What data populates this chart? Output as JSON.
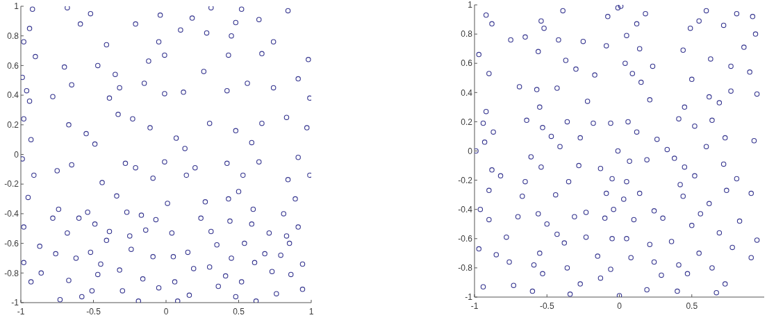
{
  "chart_data": [
    {
      "type": "scatter",
      "color": "#35358f",
      "marker": "circle",
      "xlim": [
        -1,
        1
      ],
      "ylim": [
        -1,
        1
      ],
      "xticks": [
        -1,
        -0.5,
        0,
        0.5,
        1
      ],
      "yticks": [
        -1,
        -0.8,
        -0.6,
        -0.4,
        -0.2,
        0,
        0.2,
        0.4,
        0.6,
        0.8,
        1
      ],
      "x": [
        -0.92,
        -0.68,
        -0.52,
        -0.21,
        -0.04,
        0.1,
        0.18,
        0.31,
        0.48,
        0.52,
        0.64,
        0.84,
        -0.94,
        -0.98,
        -0.59,
        -0.41,
        -0.05,
        0.28,
        0.45,
        0.74,
        -0.9,
        -0.99,
        -0.7,
        -0.47,
        -0.35,
        -0.12,
        -0.01,
        0.26,
        0.43,
        0.66,
        0.98,
        0.91,
        -0.96,
        -0.78,
        -0.65,
        -0.39,
        -0.32,
        -0.15,
        -0.01,
        0.12,
        0.42,
        0.56,
        0.74,
        0.99,
        -0.94,
        -0.98,
        -0.93,
        -0.67,
        -0.55,
        -0.49,
        -0.33,
        -0.23,
        -0.11,
        0.07,
        0.13,
        0.3,
        0.48,
        0.59,
        0.66,
        0.83,
        0.97,
        -0.99,
        -0.91,
        -0.75,
        -0.65,
        -0.44,
        -0.28,
        -0.21,
        -0.09,
        -0.01,
        0.14,
        0.2,
        0.42,
        0.53,
        0.64,
        0.84,
        0.91,
        0.99,
        -0.95,
        -0.74,
        -0.54,
        -0.34,
        -0.27,
        -0.17,
        0.01,
        0.27,
        0.43,
        0.5,
        0.6,
        0.81,
        0.89,
        -0.98,
        -0.87,
        -0.78,
        -0.68,
        -0.6,
        -0.49,
        -0.39,
        -0.25,
        -0.41,
        -0.14,
        -0.07,
        0.04,
        0.24,
        0.31,
        0.44,
        0.59,
        0.54,
        0.71,
        0.83,
        0.91,
        -0.98,
        -0.76,
        -0.62,
        -0.52,
        -0.45,
        -0.32,
        -0.24,
        -0.09,
        0.05,
        0.15,
        0.19,
        0.3,
        0.35,
        0.45,
        0.61,
        0.68,
        0.79,
        0.85,
        0.94,
        -0.93,
        -0.86,
        -0.73,
        -0.67,
        -0.58,
        -0.51,
        -0.47,
        -0.3,
        -0.19,
        -0.16,
        -0.05,
        0.06,
        0.08,
        0.16,
        0.36,
        0.41,
        0.48,
        0.52,
        0.62,
        0.73,
        0.76,
        0.86,
        0.94
      ],
      "values": [
        0.98,
        0.99,
        0.95,
        0.88,
        0.94,
        0.84,
        0.92,
        0.99,
        0.89,
        0.98,
        0.91,
        0.97,
        0.85,
        0.76,
        0.88,
        0.74,
        0.76,
        0.82,
        0.8,
        0.76,
        0.66,
        0.52,
        0.59,
        0.6,
        0.54,
        0.63,
        0.67,
        0.56,
        0.67,
        0.68,
        0.64,
        0.51,
        0.43,
        0.39,
        0.47,
        0.38,
        0.45,
        0.48,
        0.41,
        0.42,
        0.43,
        0.48,
        0.45,
        0.38,
        0.36,
        0.24,
        0.1,
        0.2,
        0.14,
        0.07,
        0.27,
        0.24,
        0.18,
        0.11,
        0.04,
        0.21,
        0.16,
        0.08,
        0.21,
        0.25,
        0.18,
        -0.03,
        -0.14,
        -0.11,
        -0.07,
        -0.19,
        -0.06,
        -0.09,
        -0.16,
        -0.05,
        -0.14,
        -0.09,
        -0.06,
        -0.14,
        -0.05,
        -0.17,
        -0.02,
        -0.14,
        -0.29,
        -0.37,
        -0.39,
        -0.28,
        -0.39,
        -0.41,
        -0.33,
        -0.32,
        -0.3,
        -0.25,
        -0.37,
        -0.4,
        -0.3,
        -0.49,
        -0.62,
        -0.43,
        -0.53,
        -0.43,
        -0.47,
        -0.52,
        -0.55,
        -0.58,
        -0.51,
        -0.44,
        -0.53,
        -0.43,
        -0.52,
        -0.45,
        -0.47,
        -0.6,
        -0.53,
        -0.55,
        -0.49,
        -0.73,
        -0.67,
        -0.7,
        -0.66,
        -0.74,
        -0.78,
        -0.64,
        -0.69,
        -0.69,
        -0.66,
        -0.77,
        -0.76,
        -0.61,
        -0.7,
        -0.73,
        -0.67,
        -0.68,
        -0.6,
        -0.74,
        -0.86,
        -0.8,
        -0.98,
        -0.85,
        -0.96,
        -0.92,
        -0.81,
        -0.92,
        -0.99,
        -0.84,
        -0.9,
        -0.86,
        -0.99,
        -0.95,
        -0.89,
        -0.82,
        -0.96,
        -0.86,
        -0.99,
        -0.79,
        -0.94,
        -0.81,
        -0.91
      ]
    },
    {
      "type": "scatter",
      "color": "#35358f",
      "marker": "circle",
      "xlim": [
        -1,
        1
      ],
      "ylim": [
        -1,
        1
      ],
      "xticks": [
        -1,
        -0.5,
        0,
        0.5
      ],
      "yticks": [
        -1,
        -0.8,
        -0.6,
        -0.4,
        -0.2,
        0,
        0.2,
        0.4,
        0.6,
        0.8,
        1
      ],
      "x": [
        -0.92,
        -0.54,
        -0.39,
        -0.08,
        -0.01,
        0.01,
        0.18,
        0.55,
        0.6,
        0.81,
        0.92,
        -0.88,
        -0.65,
        -0.52,
        -0.42,
        0.05,
        0.12,
        0.49,
        0.72,
        0.94,
        -0.97,
        -0.75,
        -0.56,
        -0.37,
        -0.25,
        -0.09,
        0.04,
        0.14,
        0.23,
        0.44,
        0.63,
        0.77,
        0.86,
        -0.9,
        -0.69,
        -0.57,
        -0.43,
        -0.3,
        -0.17,
        0.09,
        0.15,
        0.5,
        0.62,
        0.77,
        0.9,
        0.95,
        -0.92,
        -0.55,
        -0.22,
        0.21,
        0.45,
        0.69,
        -0.94,
        -0.87,
        -0.64,
        -0.53,
        -0.47,
        -0.36,
        -0.27,
        -0.18,
        -0.06,
        -0.01,
        0.06,
        0.12,
        0.41,
        0.26,
        0.52,
        0.64,
        0.73,
        0.93,
        -0.93,
        -0.99,
        -0.61,
        -0.41,
        0.33,
        0.38,
        0.6,
        -0.88,
        -0.82,
        -0.54,
        -0.28,
        -0.13,
        -0.05,
        0.07,
        0.19,
        0.45,
        0.52,
        0.72,
        0.81,
        -0.65,
        -0.35,
        0.05,
        -0.9,
        -0.96,
        -0.67,
        -0.56,
        -0.44,
        -0.23,
        -0.09,
        0.03,
        -0.04,
        0.14,
        0.24,
        0.44,
        0.56,
        0.62,
        0.74,
        0.91,
        0.42,
        -0.9,
        -0.7,
        -0.78,
        -0.5,
        -0.43,
        -0.31,
        -0.23,
        -0.1,
        -0.05,
        0.05,
        0.1,
        0.21,
        0.3,
        0.36,
        0.5,
        0.69,
        0.78,
        0.83,
        0.95,
        -0.97,
        -0.85,
        -0.76,
        -0.59,
        -0.55,
        -0.38,
        -0.36,
        -0.15,
        -0.06,
        0.08,
        0.24,
        0.41,
        0.55,
        0.64,
        0.91,
        -0.94,
        -0.73,
        -0.6,
        -0.53,
        -0.34,
        -0.27,
        -0.13,
        0.0,
        0.19,
        0.29,
        0.4,
        0.47,
        0.67,
        0.73
      ],
      "values": [
        0.93,
        0.89,
        0.96,
        0.92,
        0.98,
        0.99,
        0.94,
        0.89,
        0.96,
        0.94,
        0.92,
        0.87,
        0.78,
        0.84,
        0.76,
        0.79,
        0.87,
        0.84,
        0.86,
        0.8,
        0.66,
        0.76,
        0.68,
        0.62,
        0.75,
        0.72,
        0.6,
        0.7,
        0.58,
        0.69,
        0.63,
        0.58,
        0.71,
        0.53,
        0.44,
        0.42,
        0.43,
        0.56,
        0.52,
        0.53,
        0.47,
        0.49,
        0.37,
        0.41,
        0.54,
        0.39,
        0.27,
        0.3,
        0.34,
        0.35,
        0.3,
        0.33,
        0.19,
        0.13,
        0.21,
        0.16,
        0.1,
        0.2,
        0.09,
        0.19,
        0.19,
        0.0,
        0.2,
        0.13,
        0.22,
        0.08,
        0.17,
        0.21,
        0.09,
        0.07,
        0.06,
        0.0,
        -0.04,
        0.03,
        0.01,
        -0.05,
        0.03,
        -0.13,
        -0.17,
        -0.11,
        -0.1,
        -0.12,
        -0.19,
        -0.07,
        -0.06,
        -0.11,
        -0.17,
        -0.09,
        -0.19,
        -0.21,
        -0.21,
        -0.21,
        -0.27,
        -0.4,
        -0.31,
        -0.43,
        -0.3,
        -0.42,
        -0.29,
        -0.33,
        -0.4,
        -0.29,
        -0.41,
        -0.31,
        -0.43,
        -0.36,
        -0.27,
        -0.29,
        -0.23,
        -0.47,
        -0.45,
        -0.59,
        -0.5,
        -0.57,
        -0.45,
        -0.59,
        -0.46,
        -0.6,
        -0.6,
        -0.47,
        -0.64,
        -0.46,
        -0.62,
        -0.51,
        -0.56,
        -0.66,
        -0.48,
        -0.61,
        -0.67,
        -0.71,
        -0.76,
        -0.78,
        -0.7,
        -0.63,
        -0.8,
        -0.72,
        -0.81,
        -0.73,
        -0.76,
        -0.78,
        -0.7,
        -0.8,
        -0.73,
        -0.93,
        -0.92,
        -0.96,
        -0.84,
        -0.98,
        -0.91,
        -0.87,
        -0.99,
        -0.95,
        -0.85,
        -0.96,
        -0.84,
        -0.97,
        -0.91
      ]
    }
  ]
}
